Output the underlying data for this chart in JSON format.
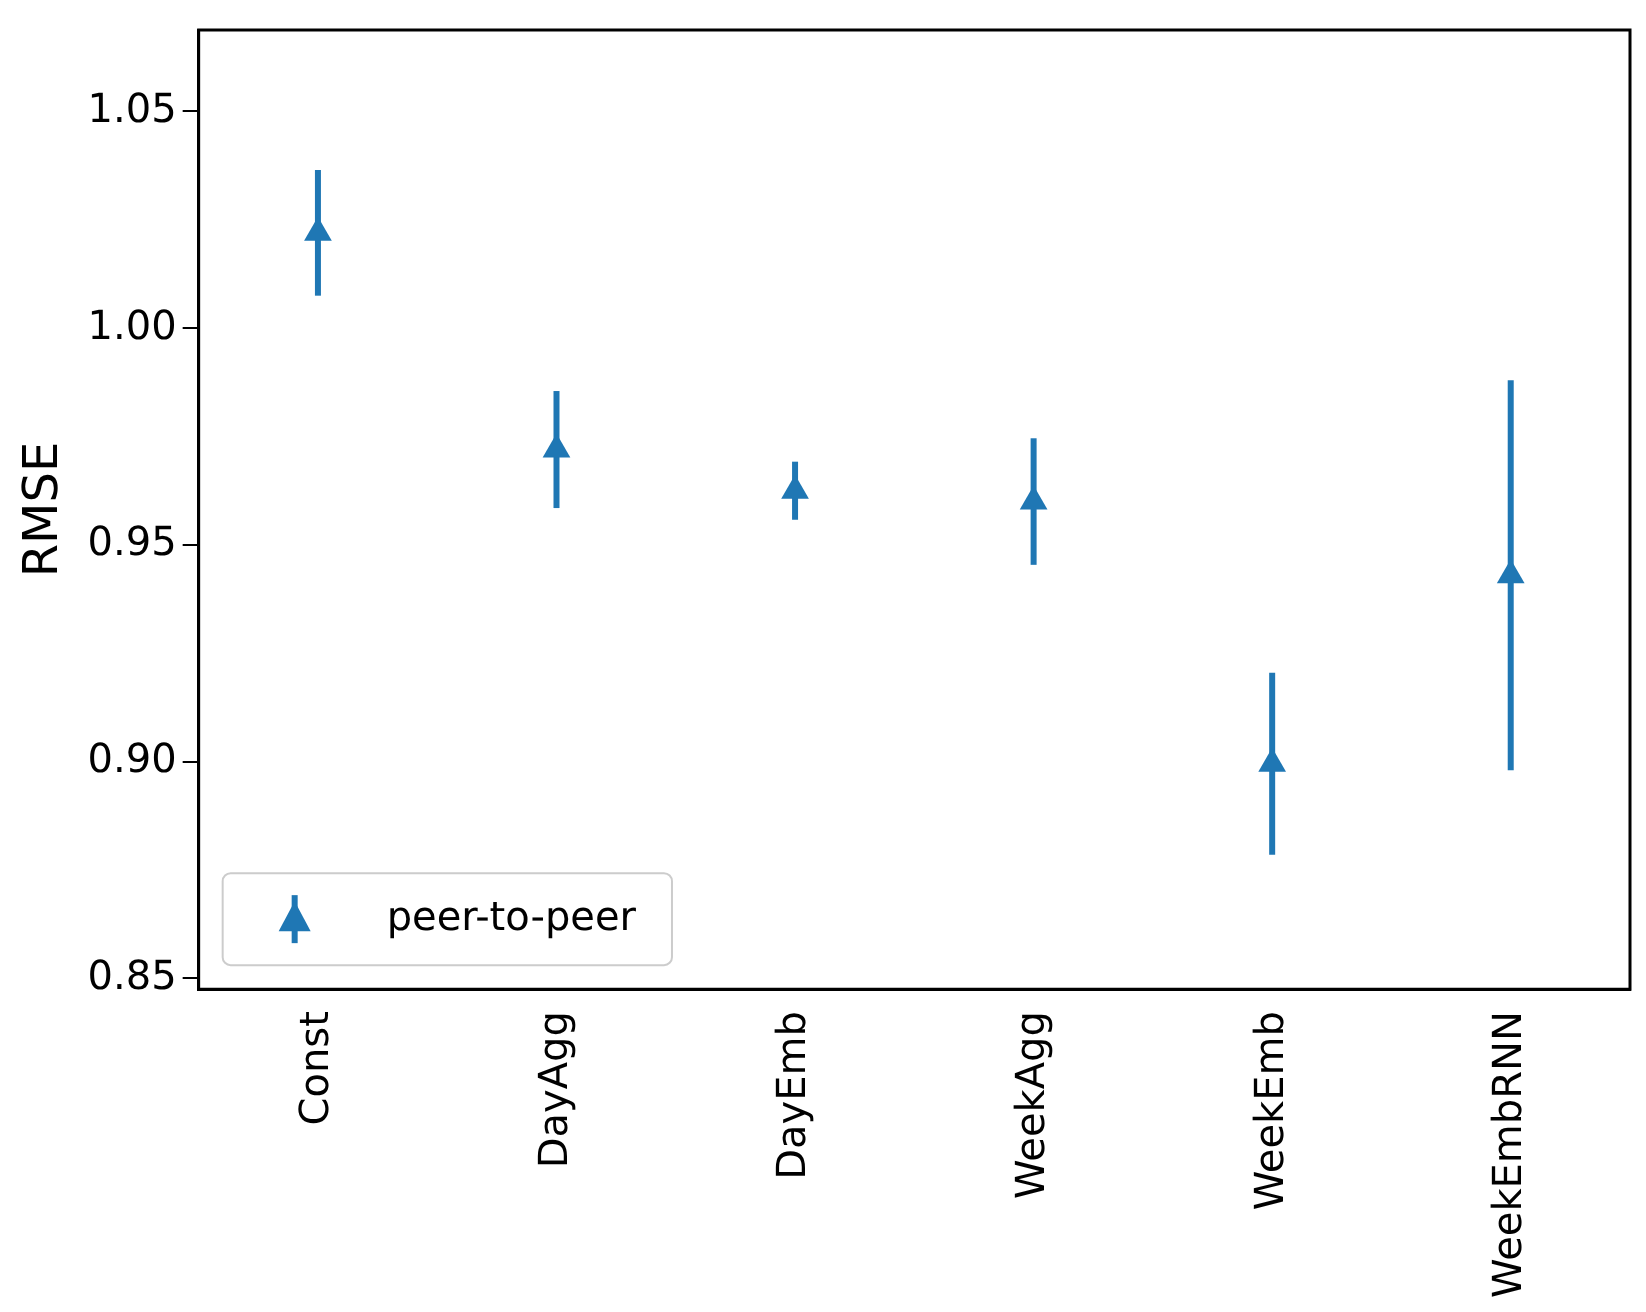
{
  "chart_data": {
    "type": "scatter",
    "ylabel": "RMSE",
    "categories": [
      "Const",
      "DayAgg",
      "DayEmb",
      "WeekAgg",
      "WeekEmb",
      "WeekEmbRNN"
    ],
    "series": [
      {
        "name": "peer-to-peer",
        "color": "#1f77b4",
        "values": [
          1.022,
          0.972,
          0.9625,
          0.96,
          0.8995,
          0.943
        ],
        "errors": [
          0.0145,
          0.0135,
          0.0067,
          0.0146,
          0.021,
          0.045
        ]
      }
    ],
    "ylim": [
      0.8475,
      1.0688
    ],
    "yticks": [
      {
        "value": 0.85,
        "label": "0.85"
      },
      {
        "value": 0.9,
        "label": "0.90"
      },
      {
        "value": 0.95,
        "label": "0.95"
      },
      {
        "value": 1.0,
        "label": "1.00"
      },
      {
        "value": 1.05,
        "label": "1.05"
      }
    ],
    "marker": "triangle",
    "legend": "bottom left",
    "grid": false
  }
}
